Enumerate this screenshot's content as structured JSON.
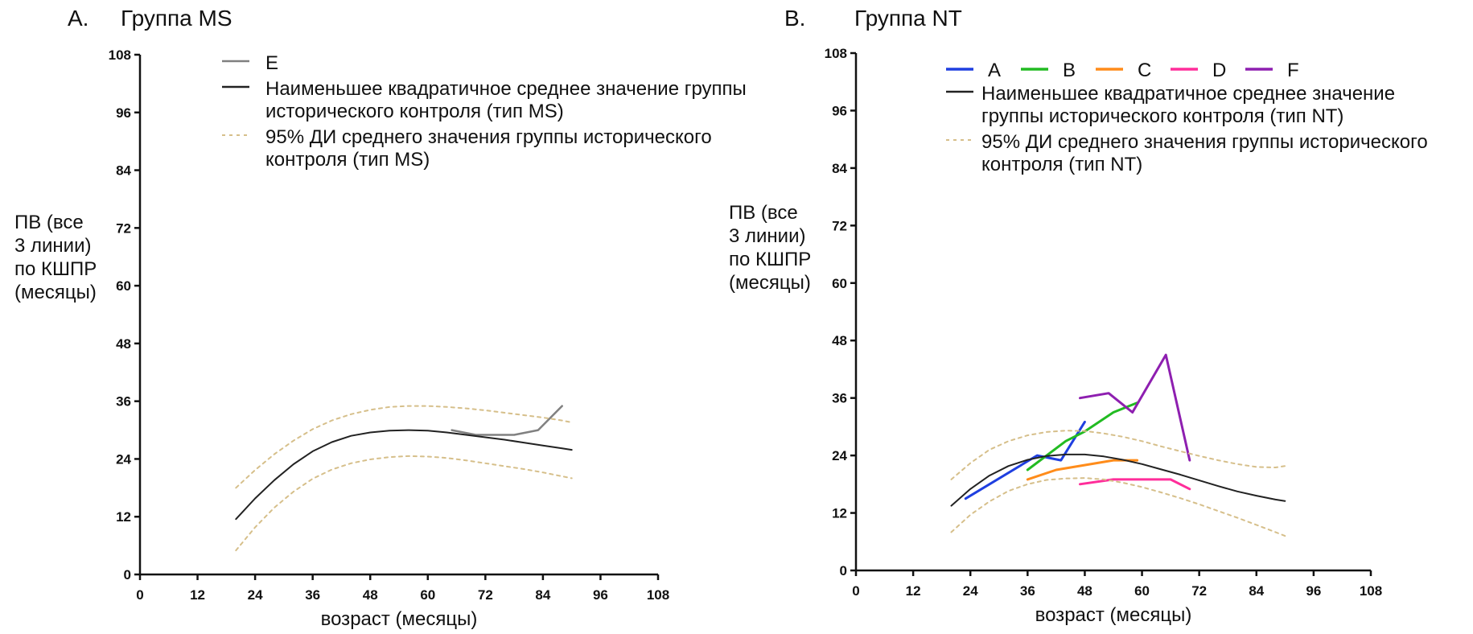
{
  "chart_data": [
    {
      "type": "line",
      "panel_letter": "A.",
      "title": "Группа MS",
      "xlabel": "возраст (месяцы)",
      "ylabel_lines": [
        "ПВ (все",
        "3 линии)",
        "по КШПР",
        "(месяцы)"
      ],
      "xlim": [
        0,
        108
      ],
      "ylim": [
        0,
        108
      ],
      "xticks": [
        0,
        12,
        24,
        36,
        48,
        60,
        72,
        84,
        96,
        108
      ],
      "yticks": [
        0,
        12,
        24,
        36,
        48,
        60,
        72,
        84,
        96,
        108
      ],
      "grid": false,
      "legend_position": "top",
      "legend": [
        {
          "label_lines": [
            "E"
          ],
          "color": "#808080",
          "style": "solid"
        },
        {
          "label_lines": [
            "Наименьшее квадратичное среднее значение группы",
            "исторического контроля (тип MS)"
          ],
          "color": "#222222",
          "style": "solid"
        },
        {
          "label_lines": [
            "95% ДИ среднего значения группы исторического",
            "контроля (тип MS)"
          ],
          "color": "#d6bf8a",
          "style": "dashed"
        }
      ],
      "series": [
        {
          "name": "E",
          "color": "#808080",
          "style": "solid",
          "width": 2.5,
          "points": [
            [
              65,
              30
            ],
            [
              70,
              29
            ],
            [
              78,
              29
            ],
            [
              83,
              30
            ],
            [
              88,
              35
            ]
          ]
        },
        {
          "name": "Наименьшее квадратичное среднее значение группы исторического контроля (тип MS)",
          "color": "#222222",
          "style": "solid",
          "width": 2,
          "points": [
            [
              20,
              11.5
            ],
            [
              24,
              15.8
            ],
            [
              28,
              19.6
            ],
            [
              32,
              22.9
            ],
            [
              36,
              25.6
            ],
            [
              40,
              27.5
            ],
            [
              44,
              28.8
            ],
            [
              48,
              29.5
            ],
            [
              52,
              29.9
            ],
            [
              56,
              30
            ],
            [
              60,
              29.9
            ],
            [
              64,
              29.5
            ],
            [
              68,
              29
            ],
            [
              72,
              28.5
            ],
            [
              76,
              28
            ],
            [
              80,
              27.4
            ],
            [
              84,
              26.8
            ],
            [
              88,
              26.2
            ],
            [
              90,
              25.9
            ]
          ]
        },
        {
          "name": "95% ДИ (верхняя граница, тип MS)",
          "color": "#d6bf8a",
          "style": "dashed",
          "width": 2,
          "points": [
            [
              20,
              18
            ],
            [
              24,
              21.7
            ],
            [
              28,
              25
            ],
            [
              32,
              27.8
            ],
            [
              36,
              30.2
            ],
            [
              40,
              32
            ],
            [
              44,
              33.3
            ],
            [
              48,
              34.2
            ],
            [
              52,
              34.8
            ],
            [
              56,
              35
            ],
            [
              60,
              35
            ],
            [
              64,
              34.8
            ],
            [
              68,
              34.5
            ],
            [
              72,
              34.1
            ],
            [
              76,
              33.6
            ],
            [
              80,
              33.1
            ],
            [
              84,
              32.6
            ],
            [
              88,
              32
            ],
            [
              90,
              31.6
            ]
          ]
        },
        {
          "name": "95% ДИ (нижняя граница, тип MS)",
          "color": "#d6bf8a",
          "style": "dashed",
          "width": 2,
          "points": [
            [
              20,
              5
            ],
            [
              24,
              9.8
            ],
            [
              28,
              13.9
            ],
            [
              32,
              17.2
            ],
            [
              36,
              19.9
            ],
            [
              40,
              21.8
            ],
            [
              44,
              23.1
            ],
            [
              48,
              23.9
            ],
            [
              52,
              24.4
            ],
            [
              56,
              24.6
            ],
            [
              60,
              24.5
            ],
            [
              64,
              24.2
            ],
            [
              68,
              23.7
            ],
            [
              72,
              23.1
            ],
            [
              76,
              22.5
            ],
            [
              80,
              21.9
            ],
            [
              84,
              21.2
            ],
            [
              88,
              20.4
            ],
            [
              90,
              20
            ]
          ]
        }
      ]
    },
    {
      "type": "line",
      "panel_letter": "B.",
      "title": "Группа NT",
      "xlabel": "возраст (месяцы)",
      "ylabel_lines": [
        "ПВ (все",
        "3 линии)",
        "по КШПР",
        "(месяцы)"
      ],
      "xlim": [
        0,
        108
      ],
      "ylim": [
        0,
        108
      ],
      "xticks": [
        0,
        12,
        24,
        36,
        48,
        60,
        72,
        84,
        96,
        108
      ],
      "yticks": [
        0,
        12,
        24,
        36,
        48,
        60,
        72,
        84,
        96,
        108
      ],
      "grid": false,
      "legend_position": "top",
      "legend_row": [
        {
          "label": "A",
          "color": "#1f3fe0"
        },
        {
          "label": "B",
          "color": "#22bb22"
        },
        {
          "label": "C",
          "color": "#ff8c1a"
        },
        {
          "label": "D",
          "color": "#ff2d9a"
        },
        {
          "label": "F",
          "color": "#8e1fb0"
        }
      ],
      "legend": [
        {
          "label_lines": [
            "Наименьшее квадратичное среднее значение",
            "группы исторического контроля (тип NT)"
          ],
          "color": "#222222",
          "style": "solid"
        },
        {
          "label_lines": [
            "95% ДИ среднего значения группы исторического",
            "контроля (тип NT)"
          ],
          "color": "#d6bf8a",
          "style": "dashed"
        }
      ],
      "series": [
        {
          "name": "A",
          "color": "#1f3fe0",
          "style": "solid",
          "width": 3,
          "points": [
            [
              23,
              15
            ],
            [
              38,
              24
            ],
            [
              43,
              23
            ],
            [
              48,
              31
            ]
          ]
        },
        {
          "name": "B",
          "color": "#22bb22",
          "style": "solid",
          "width": 3,
          "points": [
            [
              36,
              21
            ],
            [
              44,
              27
            ],
            [
              48,
              29
            ],
            [
              54,
              33
            ],
            [
              59,
              35
            ]
          ]
        },
        {
          "name": "C",
          "color": "#ff8c1a",
          "style": "solid",
          "width": 3,
          "points": [
            [
              36,
              19
            ],
            [
              42,
              21
            ],
            [
              54,
              23
            ],
            [
              59,
              23
            ]
          ]
        },
        {
          "name": "D",
          "color": "#ff2d9a",
          "style": "solid",
          "width": 3,
          "points": [
            [
              47,
              18
            ],
            [
              54,
              19
            ],
            [
              66,
              19
            ],
            [
              70,
              17
            ]
          ]
        },
        {
          "name": "F",
          "color": "#8e1fb0",
          "style": "solid",
          "width": 3,
          "points": [
            [
              47,
              36
            ],
            [
              53,
              37
            ],
            [
              58,
              33
            ],
            [
              65,
              45
            ],
            [
              70,
              23
            ]
          ]
        },
        {
          "name": "Наименьшее квадратичное среднее значение группы исторического контроля (тип NT)",
          "color": "#222222",
          "style": "solid",
          "width": 2,
          "points": [
            [
              20,
              13.5
            ],
            [
              24,
              17
            ],
            [
              28,
              19.8
            ],
            [
              32,
              21.8
            ],
            [
              36,
              23.1
            ],
            [
              40,
              23.9
            ],
            [
              44,
              24.2
            ],
            [
              48,
              24.2
            ],
            [
              52,
              23.8
            ],
            [
              56,
              23.1
            ],
            [
              60,
              22.2
            ],
            [
              64,
              21.1
            ],
            [
              68,
              20
            ],
            [
              72,
              18.8
            ],
            [
              76,
              17.6
            ],
            [
              80,
              16.5
            ],
            [
              84,
              15.6
            ],
            [
              88,
              14.8
            ],
            [
              90,
              14.5
            ]
          ]
        },
        {
          "name": "95% ДИ (верхняя граница, тип NT)",
          "color": "#d6bf8a",
          "style": "dashed",
          "width": 2,
          "points": [
            [
              20,
              19
            ],
            [
              24,
              22.4
            ],
            [
              28,
              25.2
            ],
            [
              32,
              27
            ],
            [
              36,
              28.2
            ],
            [
              40,
              28.9
            ],
            [
              44,
              29.2
            ],
            [
              48,
              29.1
            ],
            [
              52,
              28.6
            ],
            [
              56,
              27.9
            ],
            [
              60,
              27
            ],
            [
              64,
              25.9
            ],
            [
              68,
              24.9
            ],
            [
              72,
              23.9
            ],
            [
              76,
              23
            ],
            [
              80,
              22.2
            ],
            [
              84,
              21.6
            ],
            [
              88,
              21.5
            ],
            [
              90,
              21.8
            ]
          ]
        },
        {
          "name": "95% ДИ (нижняя граница, тип NT)",
          "color": "#d6bf8a",
          "style": "dashed",
          "width": 2,
          "points": [
            [
              20,
              8
            ],
            [
              24,
              11.6
            ],
            [
              28,
              14.4
            ],
            [
              32,
              16.6
            ],
            [
              36,
              18
            ],
            [
              40,
              18.9
            ],
            [
              44,
              19.2
            ],
            [
              48,
              19.3
            ],
            [
              52,
              19
            ],
            [
              56,
              18.3
            ],
            [
              60,
              17.4
            ],
            [
              64,
              16.3
            ],
            [
              68,
              15.1
            ],
            [
              72,
              13.8
            ],
            [
              76,
              12.4
            ],
            [
              80,
              11
            ],
            [
              84,
              9.5
            ],
            [
              88,
              8
            ],
            [
              90,
              7.2
            ]
          ]
        }
      ]
    }
  ]
}
